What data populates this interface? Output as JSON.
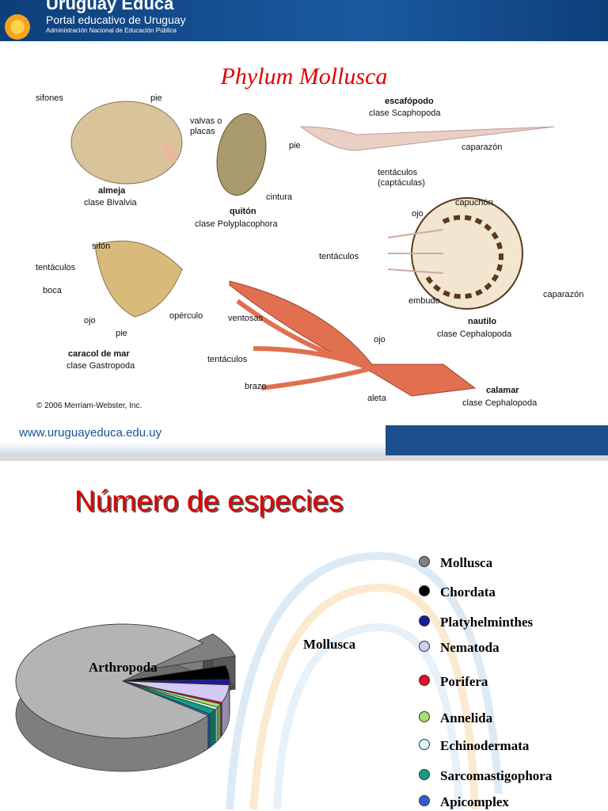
{
  "slide1": {
    "header": {
      "brand": "Uruguay Educa",
      "tagline": "Portal educativo de Uruguay",
      "agency": "Administración Nacional de Educación Pública"
    },
    "title": "Phylum Mollusca",
    "labels": [
      "sifones",
      "pie",
      "almeja",
      "clase Bivalvia",
      "valvas o\nplacas",
      "cintura",
      "quitón",
      "clase Polyplacophora",
      "escafópodo",
      "clase Scaphopoda",
      "pie",
      "caparazón",
      "tentáculos\n(captáculas)",
      "capuchón",
      "ojo",
      "tentáculos",
      "embudo",
      "caparazón",
      "nautilo",
      "clase Cephalopoda",
      "sifón",
      "tentáculos",
      "boca",
      "ojo",
      "pie",
      "opérculo",
      "caracol de mar",
      "clase Gastropoda",
      "ventosas",
      "tentáculos",
      "brazo",
      "ojo",
      "aleta",
      "calamar",
      "clase Cephalopoda"
    ],
    "copyright": "© 2006 Merriam-Webster, Inc.",
    "url": "www.uruguayeduca.edu.uy"
  },
  "chart_data": {
    "type": "pie",
    "title": "Número de especies",
    "categories": [
      "Arthropoda",
      "Mollusca",
      "Chordata",
      "Platyhelminthes",
      "Nematoda",
      "Porifera",
      "Annelida",
      "Echinodermata",
      "Sarcomastigophora",
      "Apicomplex"
    ],
    "values": [
      78,
      7,
      4,
      1.5,
      5,
      0.5,
      1,
      0.7,
      1.5,
      0.5
    ],
    "colors": [
      "#b4b4b4",
      "#808080",
      "#000000",
      "#1a1a9c",
      "#d4c8f4",
      "#e0102a",
      "#a8e070",
      "#d8f8f8",
      "#10a080",
      "#3060d0"
    ]
  }
}
